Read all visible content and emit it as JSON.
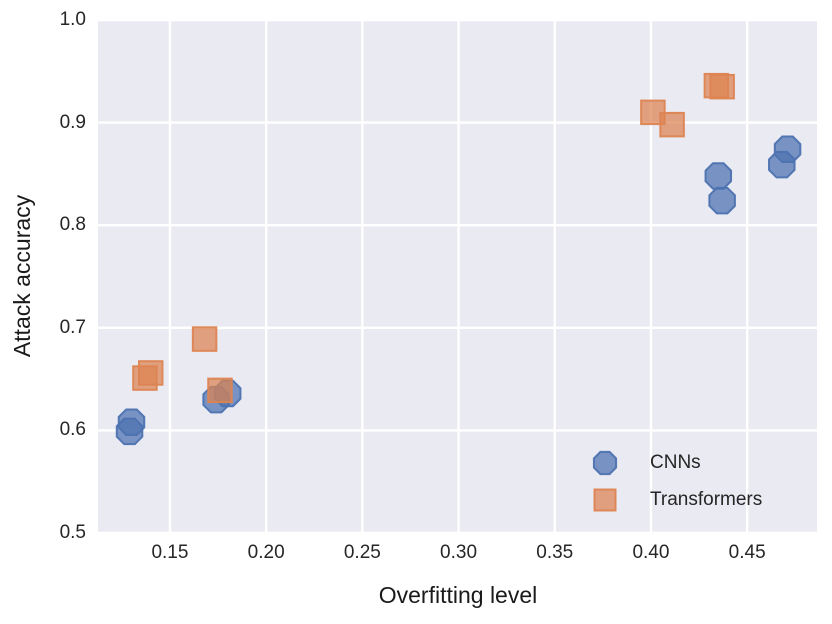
{
  "figure": {
    "background": "#FFFFFF",
    "plot_background": "#EAEAF2",
    "grid_color": "#FFFFFF",
    "text_color": "#262626"
  },
  "chart_data": {
    "type": "scatter",
    "title": "",
    "xlabel": "Overfitting level",
    "ylabel": "Attack accuracy",
    "xlim": [
      0.1126,
      0.4863
    ],
    "ylim": [
      0.5,
      1.0
    ],
    "xticks": [
      0.15,
      0.2,
      0.25,
      0.3,
      0.35,
      0.4,
      0.45
    ],
    "xtick_labels": [
      "0.15",
      "0.20",
      "0.25",
      "0.30",
      "0.35",
      "0.40",
      "0.45"
    ],
    "yticks": [
      0.5,
      0.6,
      0.7,
      0.8,
      0.9,
      1.0
    ],
    "ytick_labels": [
      "0.5",
      "0.6",
      "0.7",
      "0.8",
      "0.9",
      "1.0"
    ],
    "grid": true,
    "legend_position": "lower right",
    "series": [
      {
        "name": "CNNs",
        "marker": "octagon",
        "color": "#4C72B0",
        "points": [
          [
            0.129,
            0.599
          ],
          [
            0.13,
            0.608
          ],
          [
            0.174,
            0.63
          ],
          [
            0.18,
            0.636
          ],
          [
            0.437,
            0.824
          ],
          [
            0.435,
            0.848
          ],
          [
            0.468,
            0.859
          ],
          [
            0.471,
            0.874
          ]
        ]
      },
      {
        "name": "Transformers",
        "marker": "square",
        "color": "#DD8452",
        "points": [
          [
            0.137,
            0.651
          ],
          [
            0.14,
            0.656
          ],
          [
            0.168,
            0.689
          ],
          [
            0.176,
            0.639
          ],
          [
            0.401,
            0.91
          ],
          [
            0.411,
            0.898
          ],
          [
            0.434,
            0.936
          ],
          [
            0.437,
            0.935
          ]
        ]
      }
    ]
  }
}
